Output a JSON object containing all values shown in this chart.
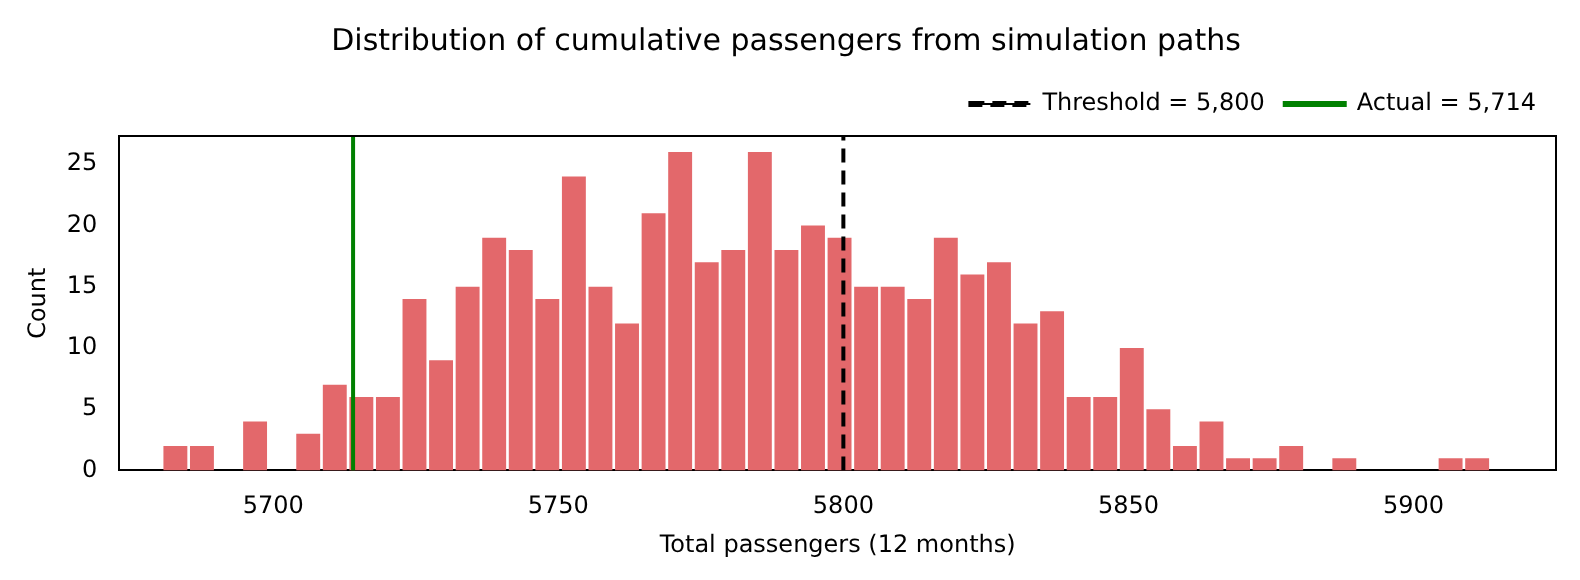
{
  "chart_data": {
    "type": "histogram",
    "title": "Distribution of cumulative passengers from simulation paths",
    "xlabel": "Total passengers (12 months)",
    "ylabel": "Count",
    "bins": [
      5680.5,
      5685.16,
      5689.82,
      5694.48,
      5699.14,
      5703.8,
      5708.46,
      5713.12,
      5717.78,
      5722.44,
      5727.1,
      5731.76,
      5736.42,
      5741.08,
      5745.74,
      5750.4,
      5755.06,
      5759.72,
      5764.38,
      5769.04,
      5773.7,
      5778.36,
      5783.02,
      5787.68,
      5792.34,
      5797,
      5801.66,
      5806.32,
      5810.98,
      5815.64,
      5820.3,
      5824.96,
      5829.62,
      5834.28,
      5838.94,
      5843.6,
      5848.26,
      5852.92,
      5857.58,
      5862.24,
      5866.9,
      5871.56,
      5876.22,
      5880.88,
      5885.54,
      5890.2,
      5894.86,
      5899.52,
      5904.18,
      5908.84,
      5913.5
    ],
    "values": [
      2,
      2,
      0,
      4,
      0,
      3,
      7,
      6,
      6,
      14,
      9,
      15,
      19,
      18,
      14,
      24,
      15,
      12,
      21,
      26,
      17,
      18,
      26,
      18,
      20,
      19,
      15,
      15,
      14,
      19,
      16,
      17,
      12,
      13,
      6,
      6,
      10,
      5,
      2,
      4,
      1,
      1,
      2,
      0,
      1,
      0,
      0,
      0,
      1,
      1
    ],
    "color": "#e3686b",
    "xlim": [
      5673,
      5925
    ],
    "xticks": [
      5700,
      5750,
      5800,
      5850,
      5900
    ],
    "ylim": [
      0,
      27.3
    ],
    "yticks": [
      0,
      5,
      10,
      15,
      20,
      25
    ],
    "ref_lines": [
      {
        "axis": "x",
        "value": 5800,
        "label": "Threshold = 5,800",
        "color": "#000000",
        "line_style": "dashed"
      },
      {
        "axis": "x",
        "value": 5714,
        "label": "Actual = 5,714",
        "color": "#008000",
        "line_style": "solid"
      }
    ],
    "legend": "top right",
    "grid": false
  }
}
